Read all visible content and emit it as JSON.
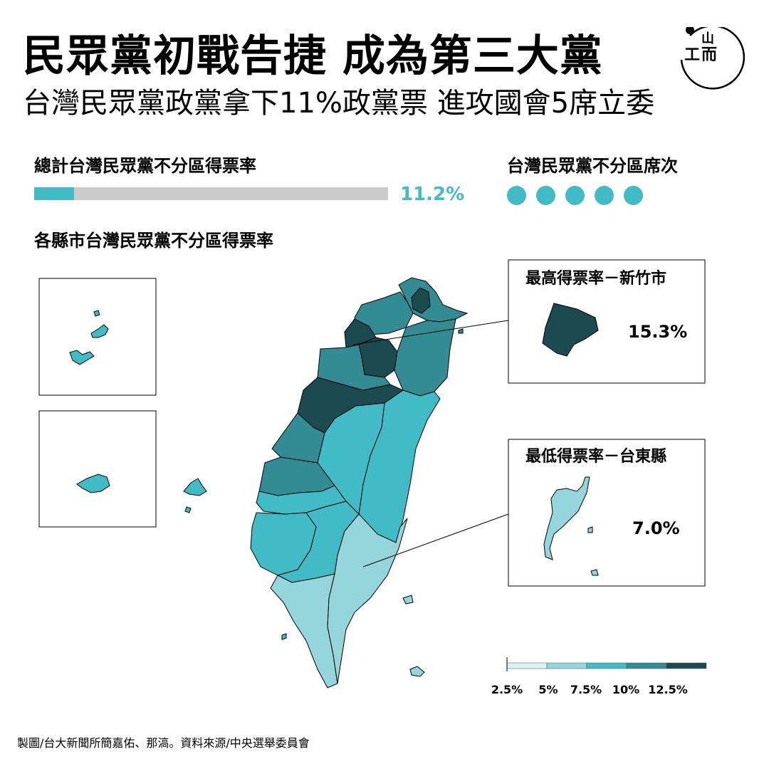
{
  "header": {
    "title": "民眾黨初戰告捷 成為第三大黨",
    "subtitle": "台灣民眾黨政黨拿下11%政黨票 進攻國會5席立委"
  },
  "logo": {
    "icon": "initium-media-logo",
    "text_top": "山",
    "text_left": "工",
    "text_right": "而"
  },
  "total": {
    "heading": "總計台灣民眾黨不分區得票率",
    "value_label": "11.2%",
    "value": 11.2,
    "bar_max": 100,
    "bar_color": "#41bcc6",
    "track_color": "#cbcbcb"
  },
  "seats": {
    "heading": "台灣民眾黨不分區席次",
    "count": 5,
    "color": "#41bcc6"
  },
  "county": {
    "heading": "各縣市台灣民眾黨不分區得票率"
  },
  "highest": {
    "title": "最高得票率－新竹市",
    "value_label": "15.3%",
    "color": "#1b4a50"
  },
  "lowest": {
    "title": "最低得票率－台東縣",
    "value_label": "7.0%",
    "color": "#95d6dc"
  },
  "legend": {
    "labels": [
      "2.5%",
      "5%",
      "7.5%",
      "10%",
      "12.5%"
    ],
    "colors": [
      "#daf0f2",
      "#95d6dc",
      "#41bcc6",
      "#338c93",
      "#1b4a50"
    ]
  },
  "credit": "製圖/台大新聞所簡嘉佑、那滈。資料來源/中央選舉委員會"
}
